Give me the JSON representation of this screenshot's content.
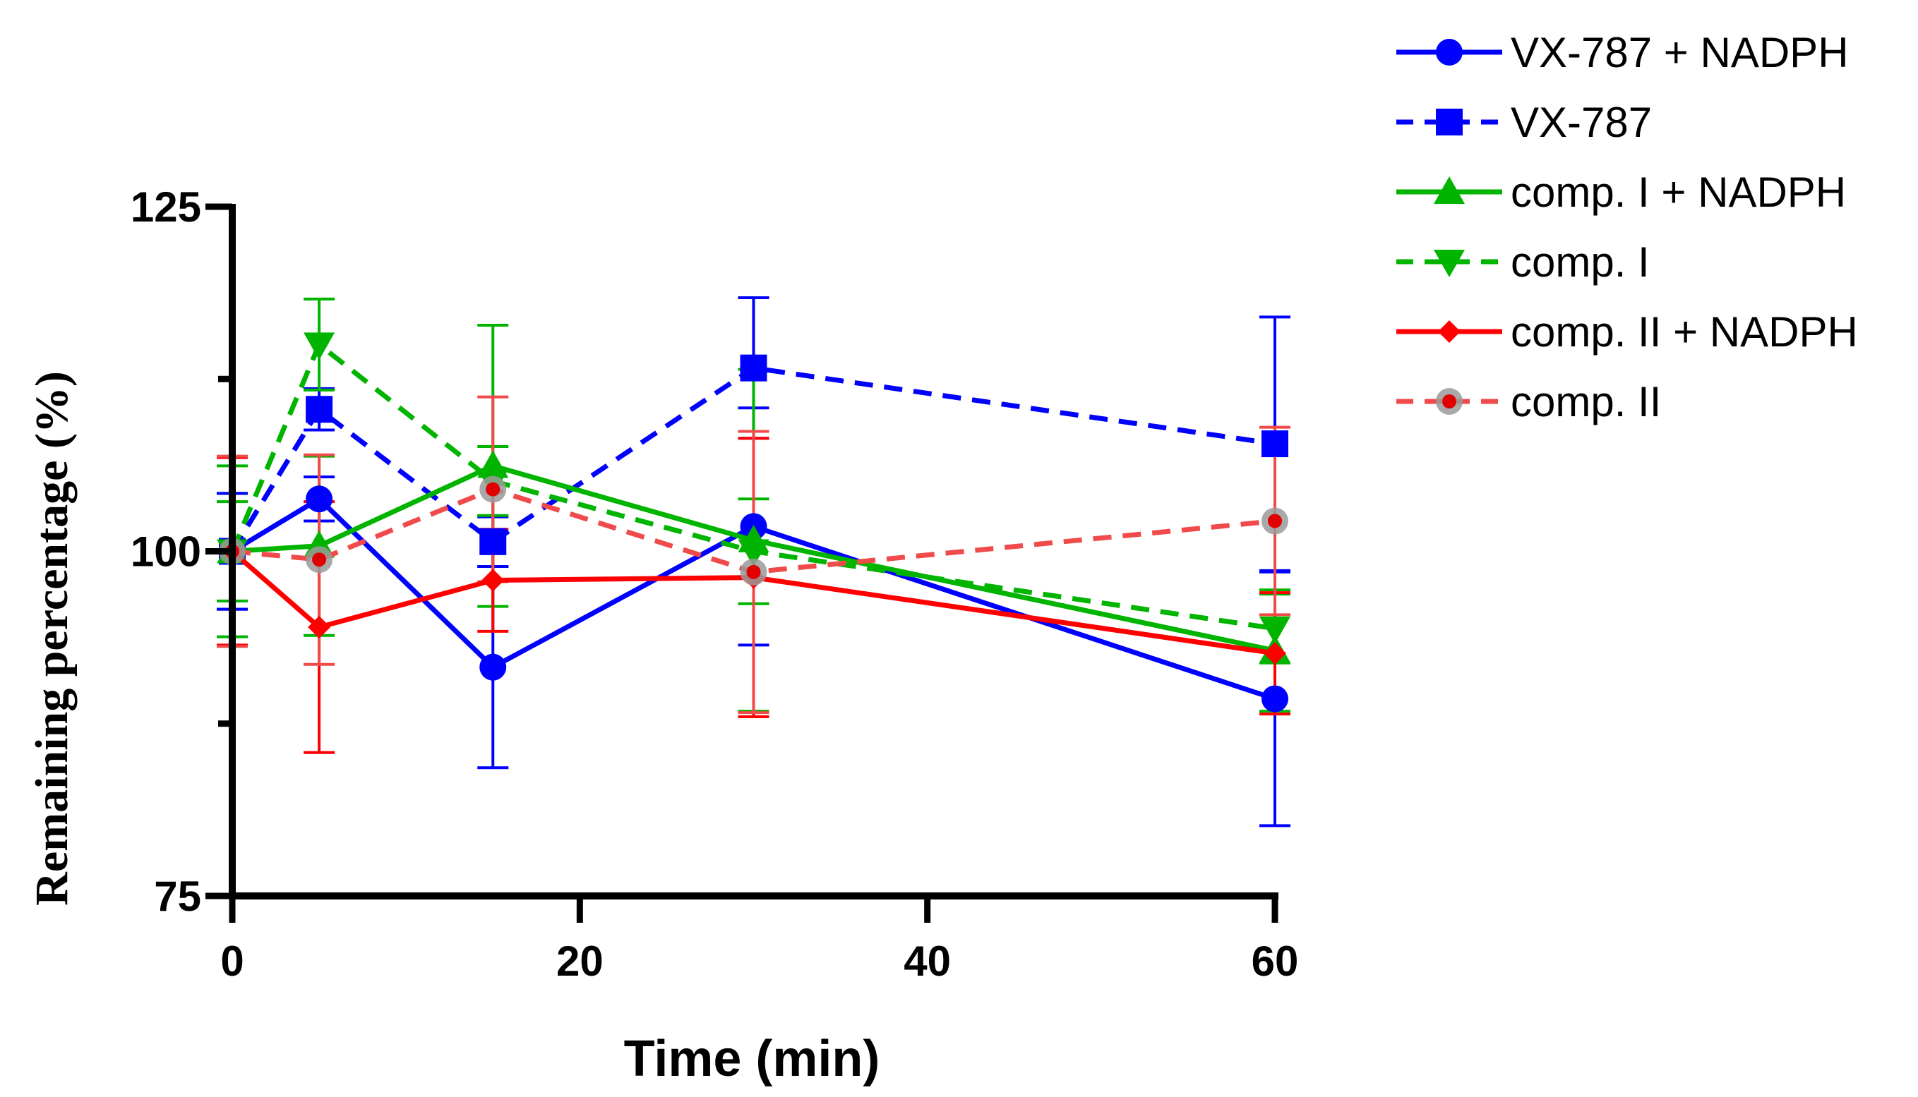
{
  "chart_data": {
    "type": "line",
    "title": "",
    "xlabel": "Time (min)",
    "ylabel": "Remaining percentage (%)",
    "x": [
      0,
      5,
      15,
      30,
      60
    ],
    "xlim": [
      0,
      60
    ],
    "ylim": [
      75,
      125
    ],
    "xticks": [
      0,
      20,
      40,
      60
    ],
    "yticks": [
      75,
      100,
      125
    ],
    "yminor_ticks": [
      87.5,
      112.5
    ],
    "grid": false,
    "legend_position": "top-right",
    "series": [
      {
        "name": "VX-787 + NADPH",
        "color": "#0000FF",
        "dash": "solid",
        "marker": "circle",
        "values": [
          100,
          103.8,
          91.6,
          101.8,
          89.3
        ],
        "errors": [
          4.2,
          1.6,
          7.3,
          8.6,
          9.2
        ]
      },
      {
        "name": "VX-787",
        "color": "#0000FF",
        "dash": "dashed",
        "marker": "square",
        "values": [
          100,
          110.3,
          100.7,
          113.3,
          107.8
        ],
        "errors": [
          4.2,
          1.5,
          1.8,
          5.1,
          9.2
        ]
      },
      {
        "name": "comp. I + NADPH",
        "color": "#00B400",
        "dash": "solid",
        "marker": "triangle-up",
        "values": [
          100,
          100.4,
          106.2,
          100.8,
          92.8
        ],
        "errors": [
          6.2,
          6.5,
          10.2,
          12.4,
          4.4
        ]
      },
      {
        "name": "comp. I",
        "color": "#00B400",
        "dash": "dashed",
        "marker": "triangle-down",
        "values": [
          100,
          115,
          105.1,
          100,
          94.4
        ],
        "errors": [
          3.6,
          3.3,
          2.5,
          3.8,
          2.5
        ]
      },
      {
        "name": "comp. II + NADPH",
        "color": "#FF0000",
        "dash": "solid",
        "marker": "diamond",
        "values": [
          100,
          94.5,
          97.9,
          98.1,
          92.6
        ],
        "errors": [
          6.8,
          9.1,
          3.7,
          10.1,
          4.4
        ]
      },
      {
        "name": "comp. II",
        "color": "#F04A4A",
        "dash": "dashed",
        "marker": "ring-dot",
        "values": [
          100,
          99.4,
          104.5,
          98.5,
          102.2
        ],
        "errors": [
          6.9,
          7.6,
          6.7,
          10.2,
          6.8
        ]
      }
    ]
  }
}
